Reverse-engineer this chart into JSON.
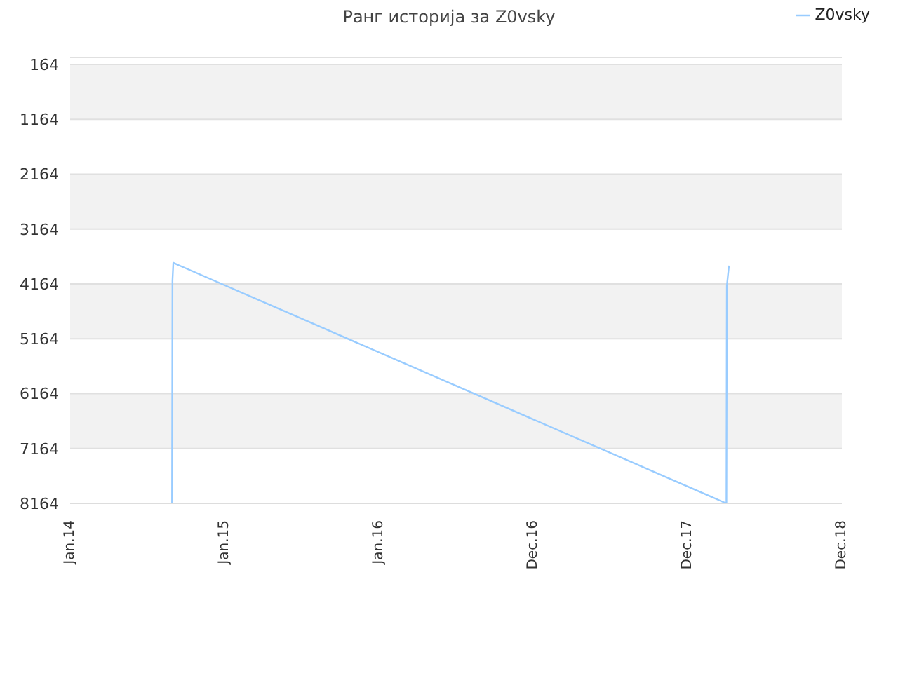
{
  "chart_data": {
    "type": "line",
    "title": "Ранг историја за Z0vsky",
    "x": [
      "2014-08-30",
      "2014-08-31",
      "2014-09-02",
      "2018-04-02",
      "2018-04-03",
      "2018-04-08"
    ],
    "series": [
      {
        "name": "Z0vsky",
        "color": "#99ccff",
        "values": [
          8164,
          4100,
          3780,
          8164,
          4200,
          3830
        ]
      }
    ],
    "xlim": [
      "2014-01-01",
      "2018-12-31"
    ],
    "xticks": [
      {
        "value": "2014-01-01",
        "label": "Jan.14"
      },
      {
        "value": "2015-01-01",
        "label": "Jan.15"
      },
      {
        "value": "2016-01-01",
        "label": "Jan.16"
      },
      {
        "value": "2016-12-31",
        "label": "Dec.16"
      },
      {
        "value": "2017-12-31",
        "label": "Dec.17"
      },
      {
        "value": "2018-12-31",
        "label": "Dec.18"
      }
    ],
    "ylim": [
      8164,
      36
    ],
    "yticks": [
      164,
      1164,
      2164,
      3164,
      4164,
      5164,
      6164,
      7164,
      8164
    ],
    "grid": "y",
    "legend": "top right",
    "marker": "none",
    "line_style": "solid"
  }
}
